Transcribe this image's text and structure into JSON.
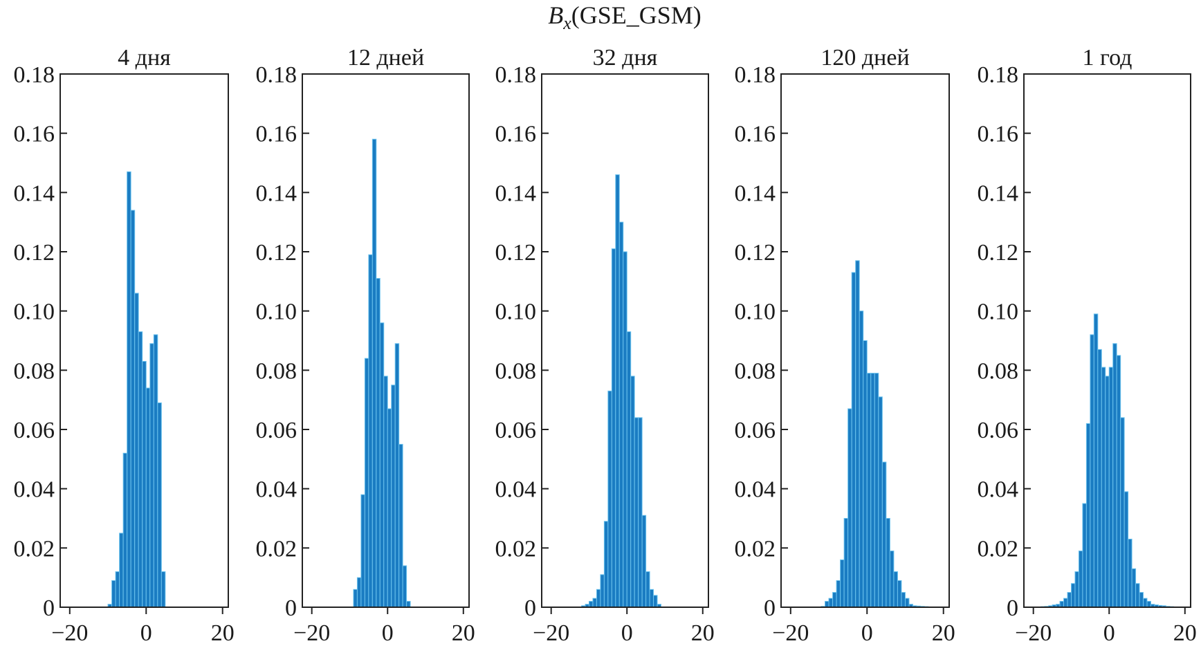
{
  "chart_data": {
    "type": "bar",
    "title_symbol": "B",
    "title_subscript": "x",
    "title_rest": "(GSE_GSM)",
    "bar_color": "#1a7cc2",
    "bar_edge_color": "#6cc3ee",
    "bin_width": 1,
    "xlim": [
      -22.5,
      21.5
    ],
    "ylim": [
      0,
      0.18
    ],
    "xticks": [
      -20,
      0,
      20
    ],
    "xtick_labels": [
      "−20",
      "0",
      "20"
    ],
    "yticks": [
      0,
      0.02,
      0.04,
      0.06,
      0.08,
      0.1,
      0.12,
      0.14,
      0.16,
      0.18
    ],
    "ytick_labels": [
      "0",
      "0.02",
      "0.04",
      "0.06",
      "0.08",
      "0.10",
      "0.12",
      "0.14",
      "0.16",
      "0.18"
    ],
    "grid": false,
    "panels": [
      {
        "title": "4 дня",
        "bin_start": -10,
        "values": [
          0.001,
          0.009,
          0.012,
          0.025,
          0.052,
          0.147,
          0.134,
          0.106,
          0.093,
          0.083,
          0.074,
          0.089,
          0.092,
          0.069,
          0.012
        ]
      },
      {
        "title": "12 дней",
        "bin_start": -9,
        "values": [
          0.006,
          0.01,
          0.038,
          0.084,
          0.119,
          0.158,
          0.111,
          0.096,
          0.078,
          0.067,
          0.075,
          0.089,
          0.055,
          0.014,
          0.002
        ]
      },
      {
        "title": "32 дня",
        "bin_start": -12,
        "values": [
          0.0005,
          0.001,
          0.002,
          0.003,
          0.006,
          0.011,
          0.029,
          0.073,
          0.121,
          0.146,
          0.13,
          0.12,
          0.093,
          0.078,
          0.064,
          0.064,
          0.031,
          0.012,
          0.006,
          0.004,
          0.001
        ]
      },
      {
        "title": "120 дней",
        "bin_start": -12,
        "values": [
          0.0003,
          0.002,
          0.003,
          0.005,
          0.009,
          0.016,
          0.03,
          0.067,
          0.113,
          0.117,
          0.1,
          0.09,
          0.079,
          0.079,
          0.079,
          0.071,
          0.049,
          0.03,
          0.019,
          0.012,
          0.009,
          0.005,
          0.003,
          0.001,
          0.0005,
          0.0004,
          0.0003,
          0.0002
        ]
      },
      {
        "title": "1 год",
        "bin_start": -18,
        "values": [
          0.0002,
          0.0003,
          0.0005,
          0.0008,
          0.001,
          0.002,
          0.003,
          0.005,
          0.008,
          0.012,
          0.019,
          0.035,
          0.062,
          0.092,
          0.099,
          0.087,
          0.081,
          0.078,
          0.081,
          0.089,
          0.085,
          0.064,
          0.039,
          0.023,
          0.013,
          0.008,
          0.005,
          0.003,
          0.002,
          0.001,
          0.0008,
          0.0006,
          0.0005,
          0.0003,
          0.0002
        ]
      }
    ]
  }
}
